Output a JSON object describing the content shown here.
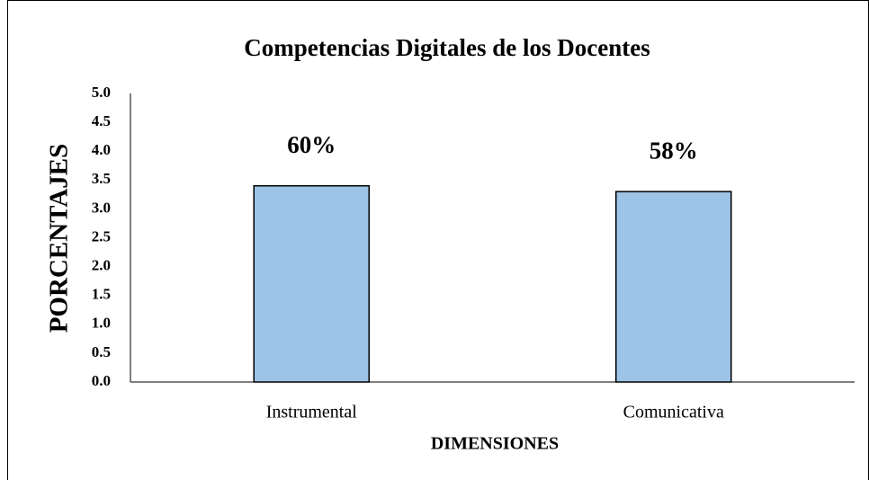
{
  "chart_data": {
    "type": "bar",
    "title": "Competencias Digitales de los Docentes",
    "x_label": "DIMENSIONES",
    "y_label": "PORCENTAJES",
    "categories": [
      "Instrumental",
      "Comunicativa"
    ],
    "values": [
      3.4,
      3.3
    ],
    "annotations": [
      "60%",
      "58%"
    ],
    "color": "#9dc3e6",
    "ylim": [
      0,
      5
    ],
    "yticks": [
      {
        "value": 0,
        "label": "0.0"
      },
      0.5,
      {
        "value": 1,
        "label": "1.0"
      },
      1.5,
      {
        "value": 2,
        "label": "2.0"
      },
      2.5,
      {
        "value": 3,
        "label": "3.0"
      },
      3.5,
      {
        "value": 4,
        "label": "4.0"
      },
      4.5,
      {
        "value": 5,
        "label": "5.0"
      }
    ],
    "grid": false
  }
}
